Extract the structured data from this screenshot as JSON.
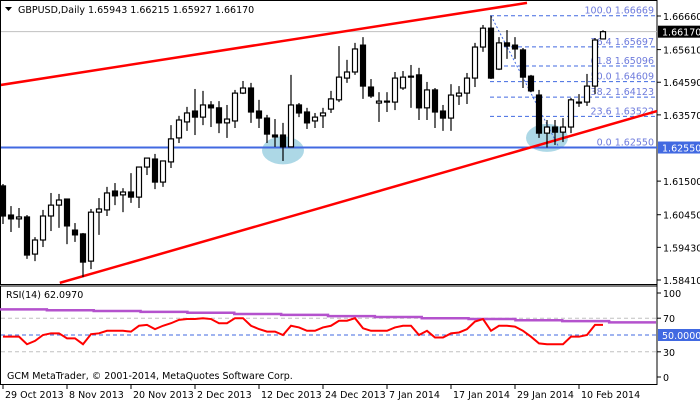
{
  "header": {
    "symbol": "GBPUSD,Daily",
    "ohlc": "1.65943 1.66215 1.65927 1.66170"
  },
  "footer": {
    "copyright": "GCM MetaTrader, © 2001-2014, MetaQuotes Software Corp."
  },
  "colors": {
    "bull_fill": "#ffffff",
    "bear_fill": "#000000",
    "trendline": "#ff0000",
    "support_line": "#4169e1",
    "fib": "#4169e1",
    "fib_text": "#6e7bdc",
    "ellipse": "#add8e6",
    "rsi_line": "#ff0000",
    "rsi_signal": "#b452cd",
    "current_price_line": "#c0c0c0"
  },
  "chart_data": [
    {
      "type": "candlestick",
      "title": "GBPUSD,Daily",
      "price_axis": {
        "ticks": [
          "1.66660",
          "1.65610",
          "1.64590",
          "1.63570",
          "1.61500",
          "1.60450",
          "1.59430",
          "1.58410"
        ],
        "current_price_label": "1.66170",
        "support_label": "1.62550",
        "ylim": [
          1.5828,
          1.6706
        ]
      },
      "date_axis": {
        "ticks": [
          {
            "bar": 0,
            "label": "29 Oct 2013"
          },
          {
            "bar": 8,
            "label": "8 Nov 2013"
          },
          {
            "bar": 16,
            "label": "20 Nov 2013"
          },
          {
            "bar": 24,
            "label": "2 Dec 2013"
          },
          {
            "bar": 32,
            "label": "12 Dec 2013"
          },
          {
            "bar": 40,
            "label": "24 Dec 2013"
          },
          {
            "bar": 48,
            "label": "7 Jan 2014"
          },
          {
            "bar": 56,
            "label": "17 Jan 2014"
          },
          {
            "bar": 64,
            "label": "29 Jan 2014"
          },
          {
            "bar": 72,
            "label": "10 Feb 2014"
          }
        ]
      },
      "candles_ochl_order": "open, close, high, low",
      "candles": [
        [
          1.6135,
          1.6041,
          1.6141,
          1.6016
        ],
        [
          1.6044,
          1.6032,
          1.6072,
          1.5991
        ],
        [
          1.6032,
          1.6038,
          1.6066,
          1.6004
        ],
        [
          1.6038,
          1.5919,
          1.6044,
          1.5907
        ],
        [
          1.5922,
          1.5966,
          1.5975,
          1.59
        ],
        [
          1.5966,
          1.6041,
          1.606,
          1.5944
        ],
        [
          1.6041,
          1.6075,
          1.6113,
          1.5994
        ],
        [
          1.6075,
          1.6091,
          1.611,
          1.6004
        ],
        [
          1.6094,
          1.601,
          1.6094,
          1.5953
        ],
        [
          1.5997,
          1.5982,
          1.6019,
          1.596
        ],
        [
          1.5985,
          1.5897,
          1.5988,
          1.585
        ],
        [
          1.59,
          1.6053,
          1.6063,
          1.5875
        ],
        [
          1.6053,
          1.6063,
          1.6097,
          1.5982
        ],
        [
          1.606,
          1.6113,
          1.6132,
          1.6041
        ],
        [
          1.6119,
          1.6104,
          1.6144,
          1.6075
        ],
        [
          1.6107,
          1.6116,
          1.6128,
          1.6053
        ],
        [
          1.6116,
          1.61,
          1.6175,
          1.6082
        ],
        [
          1.61,
          1.6194,
          1.6194,
          1.6066
        ],
        [
          1.6194,
          1.6222,
          1.6222,
          1.6169
        ],
        [
          1.6219,
          1.6147,
          1.6235,
          1.6125
        ],
        [
          1.6147,
          1.6213,
          1.6213,
          1.6132
        ],
        [
          1.621,
          1.6282,
          1.6325,
          1.6191
        ],
        [
          1.6285,
          1.6341,
          1.6354,
          1.6269
        ],
        [
          1.6335,
          1.6363,
          1.6382,
          1.6307
        ],
        [
          1.6369,
          1.635,
          1.6438,
          1.6294
        ],
        [
          1.635,
          1.6388,
          1.6432,
          1.6325
        ],
        [
          1.6388,
          1.6379,
          1.64,
          1.6319
        ],
        [
          1.6379,
          1.6332,
          1.64,
          1.63
        ],
        [
          1.6332,
          1.6344,
          1.6388,
          1.6285
        ],
        [
          1.6338,
          1.6425,
          1.6435,
          1.6316
        ],
        [
          1.6425,
          1.6441,
          1.6463,
          1.6422
        ],
        [
          1.6441,
          1.6366,
          1.6457,
          1.6332
        ],
        [
          1.6369,
          1.6347,
          1.6404,
          1.6316
        ],
        [
          1.6347,
          1.6297,
          1.6357,
          1.6269
        ],
        [
          1.6294,
          1.6288,
          1.6344,
          1.6257
        ],
        [
          1.6294,
          1.6257,
          1.6332,
          1.6213
        ],
        [
          1.6257,
          1.6388,
          1.6482,
          1.6257
        ],
        [
          1.6388,
          1.6363,
          1.6394,
          1.635
        ],
        [
          1.6366,
          1.6332,
          1.6379,
          1.6313
        ],
        [
          1.6338,
          1.635,
          1.6363,
          1.6316
        ],
        [
          1.6354,
          1.6363,
          1.6379,
          1.6316
        ],
        [
          1.6375,
          1.6407,
          1.6432,
          1.6363
        ],
        [
          1.6404,
          1.6475,
          1.6572,
          1.6397
        ],
        [
          1.6472,
          1.6491,
          1.6529,
          1.6457
        ],
        [
          1.6491,
          1.6563,
          1.6582,
          1.6482
        ],
        [
          1.6575,
          1.6447,
          1.66,
          1.6407
        ],
        [
          1.6444,
          1.6416,
          1.6469,
          1.641
        ],
        [
          1.6394,
          1.64,
          1.6428,
          1.6335
        ],
        [
          1.64,
          1.6397,
          1.6428,
          1.6366
        ],
        [
          1.6397,
          1.6472,
          1.6491,
          1.6372
        ],
        [
          1.6441,
          1.6475,
          1.6494,
          1.6435
        ],
        [
          1.6478,
          1.6475,
          1.6513,
          1.6379
        ],
        [
          1.6482,
          1.6379,
          1.6504,
          1.6341
        ],
        [
          1.6379,
          1.6435,
          1.646,
          1.6341
        ],
        [
          1.6435,
          1.6366,
          1.6441,
          1.6316
        ],
        [
          1.6369,
          1.6347,
          1.6388,
          1.6307
        ],
        [
          1.6347,
          1.6419,
          1.6453,
          1.6307
        ],
        [
          1.6416,
          1.6425,
          1.6447,
          1.6388
        ],
        [
          1.6425,
          1.6472,
          1.6488,
          1.6391
        ],
        [
          1.6472,
          1.6569,
          1.6582,
          1.6444
        ],
        [
          1.6569,
          1.6628,
          1.6638,
          1.6554
        ],
        [
          1.6628,
          1.6472,
          1.66669,
          1.6469
        ],
        [
          1.65,
          1.6582,
          1.66,
          1.6497
        ],
        [
          1.6582,
          1.6572,
          1.6622,
          1.6532
        ],
        [
          1.6575,
          1.6563,
          1.66,
          1.6532
        ],
        [
          1.656,
          1.6475,
          1.6566,
          1.6441
        ],
        [
          1.6478,
          1.6432,
          1.6482,
          1.6428
        ],
        [
          1.6419,
          1.63,
          1.6435,
          1.6285
        ],
        [
          1.63,
          1.6319,
          1.6341,
          1.6255
        ],
        [
          1.6319,
          1.6303,
          1.6341,
          1.6263
        ],
        [
          1.6303,
          1.6319,
          1.6347,
          1.6272
        ],
        [
          1.6319,
          1.6404,
          1.641,
          1.63
        ],
        [
          1.6397,
          1.6394,
          1.6422,
          1.6382
        ],
        [
          1.6397,
          1.6447,
          1.6485,
          1.6385
        ],
        [
          1.6447,
          1.6591,
          1.6597,
          1.6422
        ],
        [
          1.65943,
          1.6617,
          1.66215,
          1.65927
        ]
      ],
      "trendlines": [
        {
          "name": "upper-channel",
          "from": {
            "bar": -0.4,
            "price": 1.645
          },
          "to": {
            "bar": 65.5,
            "price": 1.6707
          }
        },
        {
          "name": "lower-channel",
          "from": {
            "bar": 7.1,
            "price": 1.5832
          },
          "to": {
            "bar": 81.75,
            "price": 1.6369
          }
        }
      ],
      "support_price": 1.6255,
      "current_price": 1.6617,
      "highlight_ellipses": [
        {
          "bar": 35,
          "price": 1.6246
        },
        {
          "bar": 68,
          "price": 1.6285
        }
      ],
      "fibonacci": {
        "from_bar": 61,
        "high": 1.66669,
        "low": 1.6255,
        "levels": [
          {
            "label": "100.0 1.66669",
            "price": 1.66669
          },
          {
            "label": "76.4 1.65697",
            "price": 1.65697
          },
          {
            "label": "61.8 1.65096",
            "price": 1.65096
          },
          {
            "label": "50.0 1.64609",
            "price": 1.64609
          },
          {
            "label": "38.2 1.64123",
            "price": 1.64123
          },
          {
            "label": "23.6 1.63522",
            "price": 1.63522
          },
          {
            "label": "0.0 1.62550",
            "price": 1.6255
          }
        ]
      }
    },
    {
      "type": "line",
      "title": "RSI(14) 62.0970",
      "ylim": [
        0,
        100
      ],
      "ticks": [
        "100",
        "70",
        "30",
        "0"
      ],
      "level_lines": [
        70,
        50,
        30
      ],
      "highlight_label": "50.00000",
      "rsi": [
        48,
        48,
        48,
        39,
        43,
        50,
        52,
        52,
        46,
        46,
        39,
        51,
        52,
        55,
        55,
        55,
        54,
        61,
        62,
        57,
        61,
        64,
        68,
        69,
        69,
        70,
        69,
        64,
        64,
        70,
        70,
        61,
        57,
        54,
        54,
        50,
        61,
        59,
        55,
        55,
        59,
        61,
        67,
        67,
        70,
        58,
        55,
        55,
        55,
        59,
        61,
        61,
        50,
        55,
        47,
        47,
        52,
        53,
        57,
        66,
        69,
        55,
        61,
        61,
        60,
        55,
        48,
        40,
        39,
        39,
        39,
        48,
        48,
        50,
        62,
        62.097
      ],
      "signal_steps": [
        80.5,
        79.5,
        78.5,
        77.5,
        76.5,
        75,
        74,
        72.5,
        71.5,
        70,
        69,
        67.5,
        66.5,
        65
      ]
    }
  ]
}
